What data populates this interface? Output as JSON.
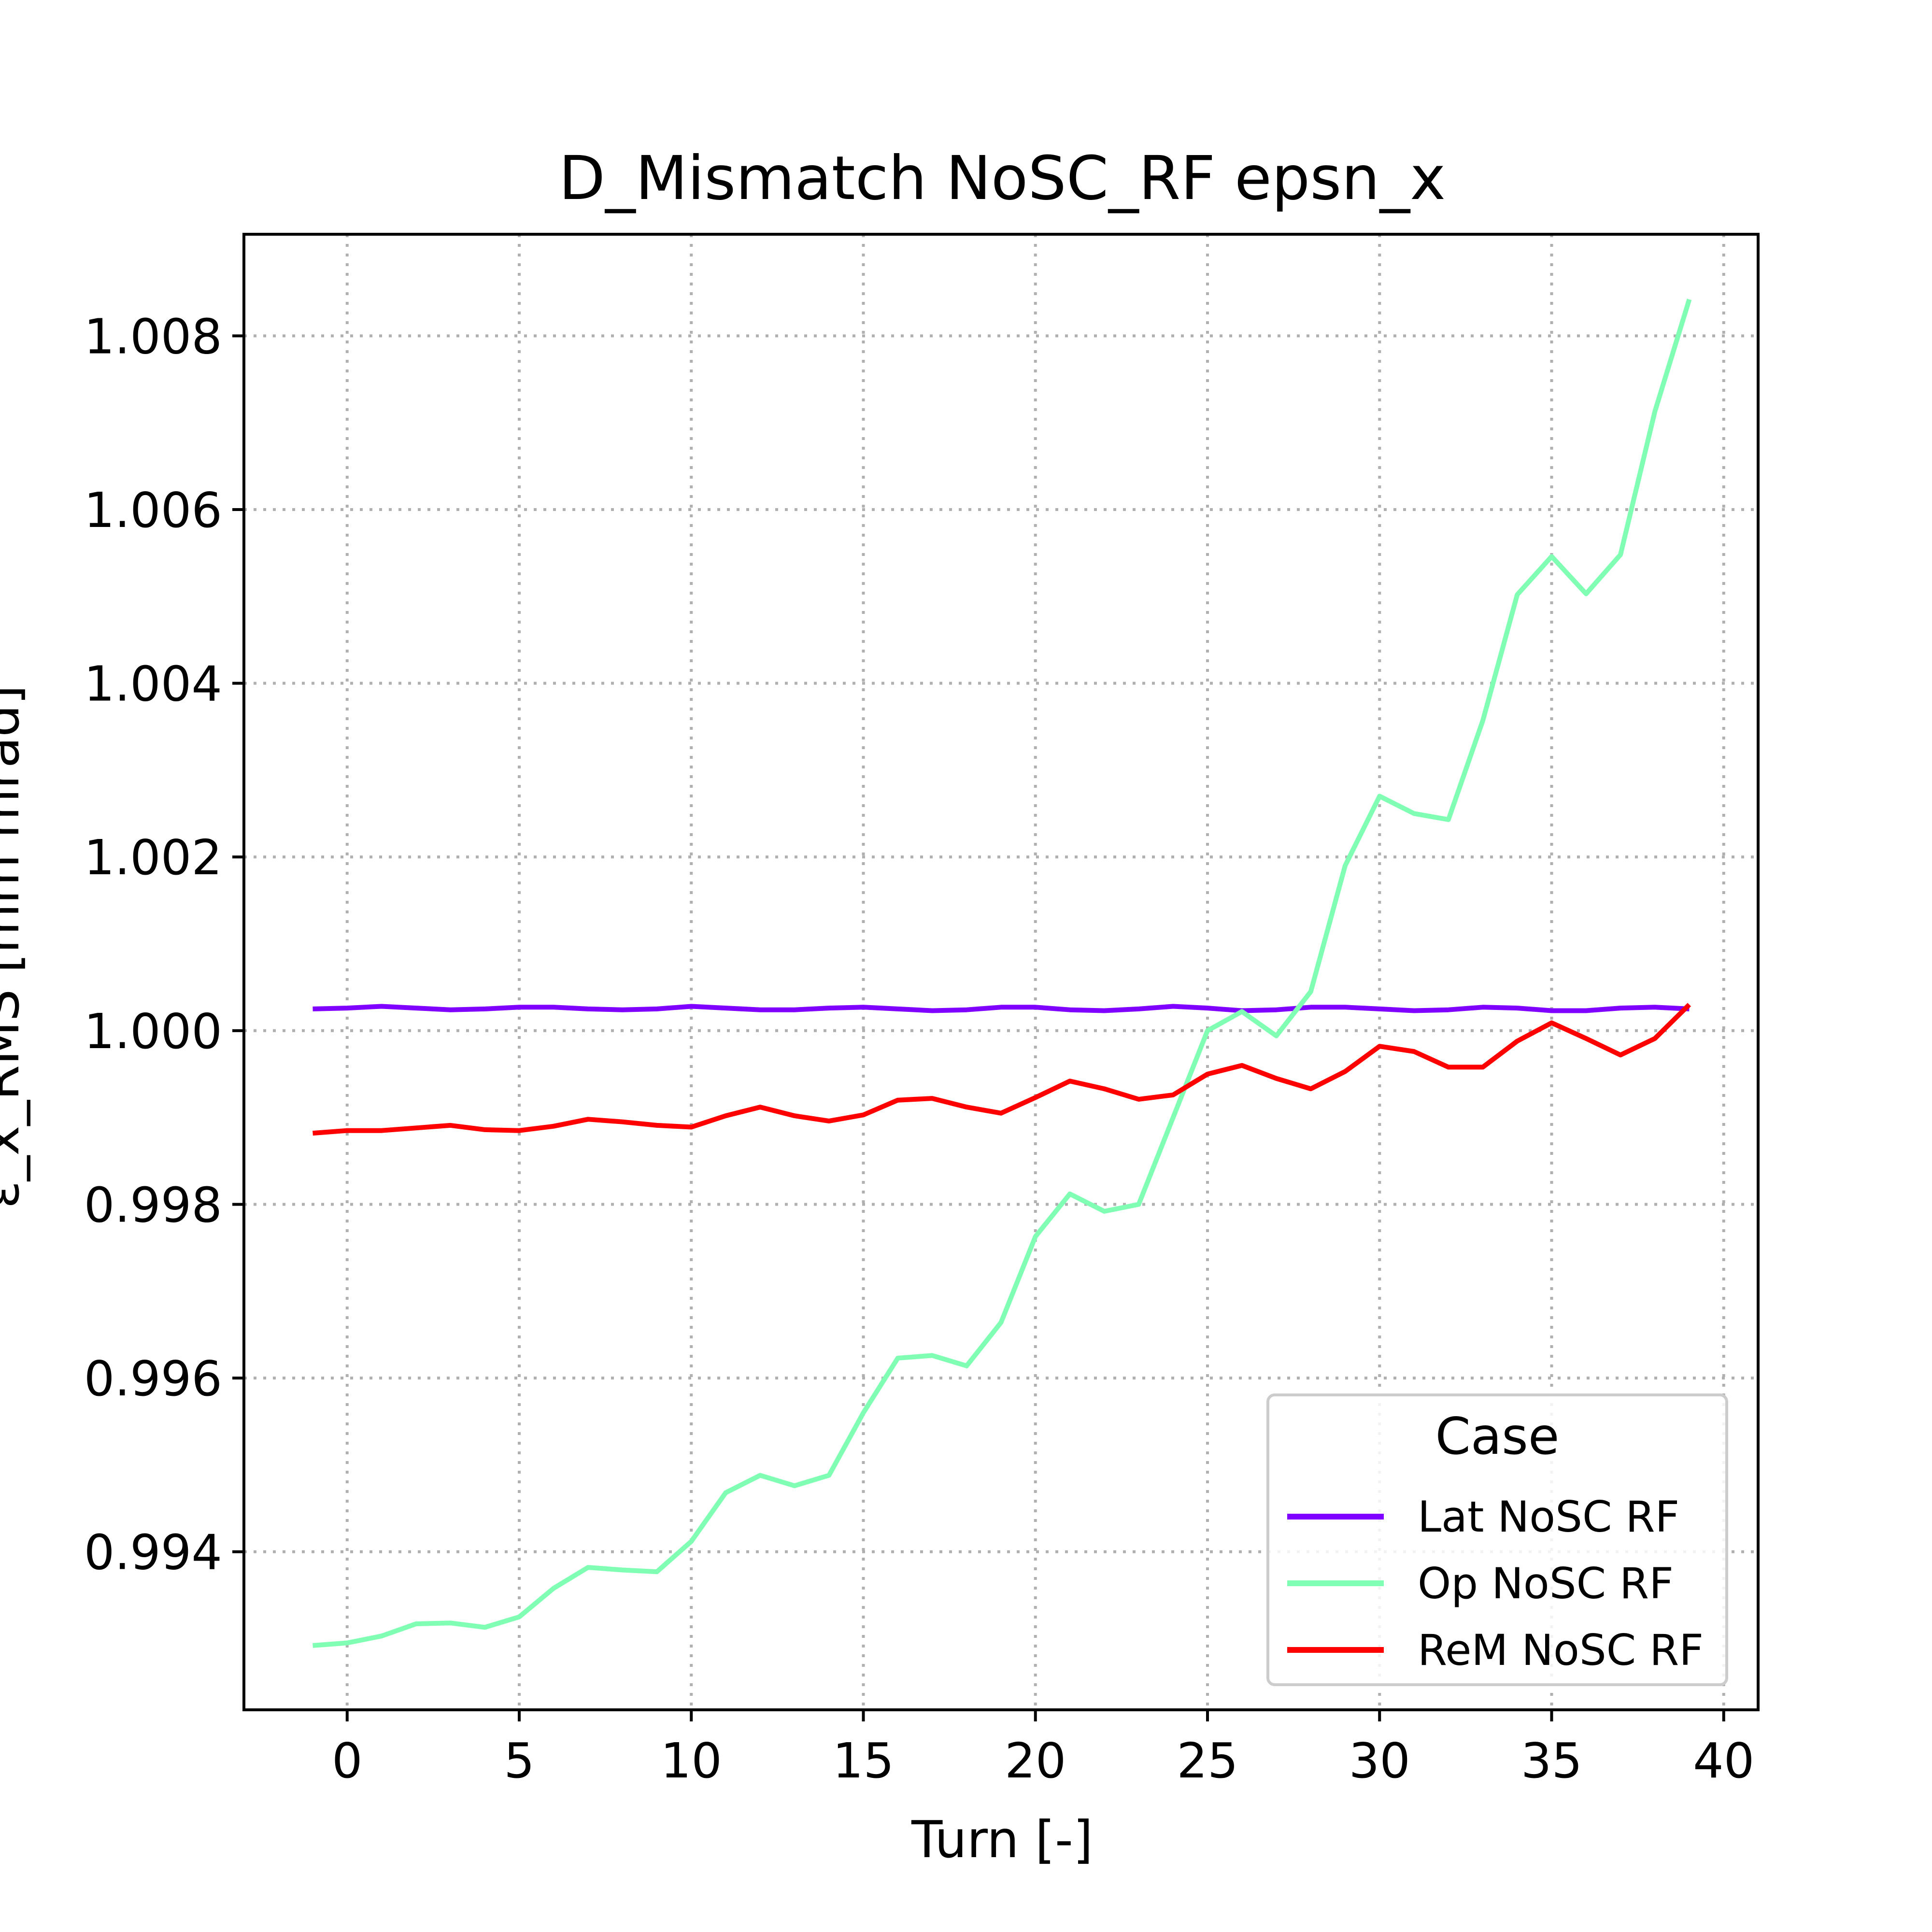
{
  "chart_data": {
    "type": "line",
    "title": "D_Mismatch NoSC_RF epsn_x",
    "xlabel": "Turn [-]",
    "ylabel": "ε_x_RMS [mm mrad]",
    "xlim": [
      -3,
      41
    ],
    "ylim": [
      0.99218,
      1.00917
    ],
    "xticks": [
      0,
      5,
      10,
      15,
      20,
      25,
      30,
      35,
      40
    ],
    "yticks": [
      0.994,
      0.996,
      0.998,
      1.0,
      1.002,
      1.004,
      1.006,
      1.008
    ],
    "ytick_labels": [
      "0.994",
      "0.996",
      "0.998",
      "1.000",
      "1.002",
      "1.004",
      "1.006",
      "1.008"
    ],
    "grid": true,
    "legend": {
      "title": "Case",
      "placement": "lower-right"
    },
    "x": [
      -1,
      0,
      1,
      2,
      3,
      4,
      5,
      6,
      7,
      8,
      9,
      10,
      11,
      12,
      13,
      14,
      15,
      16,
      17,
      18,
      19,
      20,
      21,
      22,
      23,
      24,
      25,
      26,
      27,
      28,
      29,
      30,
      31,
      32,
      33,
      34,
      35,
      36,
      37,
      38,
      39
    ],
    "series": [
      {
        "name": "Lat NoSC RF",
        "color": "#8000ff",
        "values": [
          1.00025,
          1.00026,
          1.00028,
          1.00026,
          1.00024,
          1.00025,
          1.00027,
          1.00027,
          1.00025,
          1.00024,
          1.00025,
          1.00028,
          1.00026,
          1.00024,
          1.00024,
          1.00026,
          1.00027,
          1.00025,
          1.00023,
          1.00024,
          1.00027,
          1.00027,
          1.00024,
          1.00023,
          1.00025,
          1.00028,
          1.00026,
          1.00023,
          1.00024,
          1.00027,
          1.00027,
          1.00025,
          1.00023,
          1.00024,
          1.00027,
          1.00026,
          1.00023,
          1.00023,
          1.00026,
          1.00027,
          1.00025
        ]
      },
      {
        "name": "Op NoSC RF",
        "color": "#80ffb4",
        "values": [
          0.99292,
          0.99295,
          0.99303,
          0.99317,
          0.99318,
          0.99313,
          0.99325,
          0.99358,
          0.99382,
          0.99379,
          0.99377,
          0.99412,
          0.99468,
          0.99488,
          0.99476,
          0.99488,
          0.9956,
          0.99623,
          0.99626,
          0.99614,
          0.99664,
          0.99763,
          0.99812,
          0.99792,
          0.998,
          0.999,
          1.0,
          1.00022,
          0.99994,
          1.00045,
          1.0019,
          1.0027,
          1.0025,
          1.00243,
          1.00357,
          1.00502,
          1.00546,
          1.00503,
          1.00548,
          1.00713,
          1.00842
        ]
      },
      {
        "name": "ReM NoSC RF",
        "color": "#ff0000",
        "values": [
          0.99882,
          0.99885,
          0.99885,
          0.99888,
          0.99891,
          0.99886,
          0.99885,
          0.9989,
          0.99898,
          0.99895,
          0.99891,
          0.99889,
          0.99902,
          0.99912,
          0.99902,
          0.99896,
          0.99903,
          0.9992,
          0.99922,
          0.99912,
          0.99905,
          0.99923,
          0.99942,
          0.99933,
          0.99921,
          0.99926,
          0.9995,
          0.9996,
          0.99945,
          0.99933,
          0.99953,
          0.99982,
          0.99976,
          0.99958,
          0.99958,
          0.99988,
          1.00009,
          0.99991,
          0.99972,
          0.99991,
          1.0003
        ]
      }
    ]
  }
}
